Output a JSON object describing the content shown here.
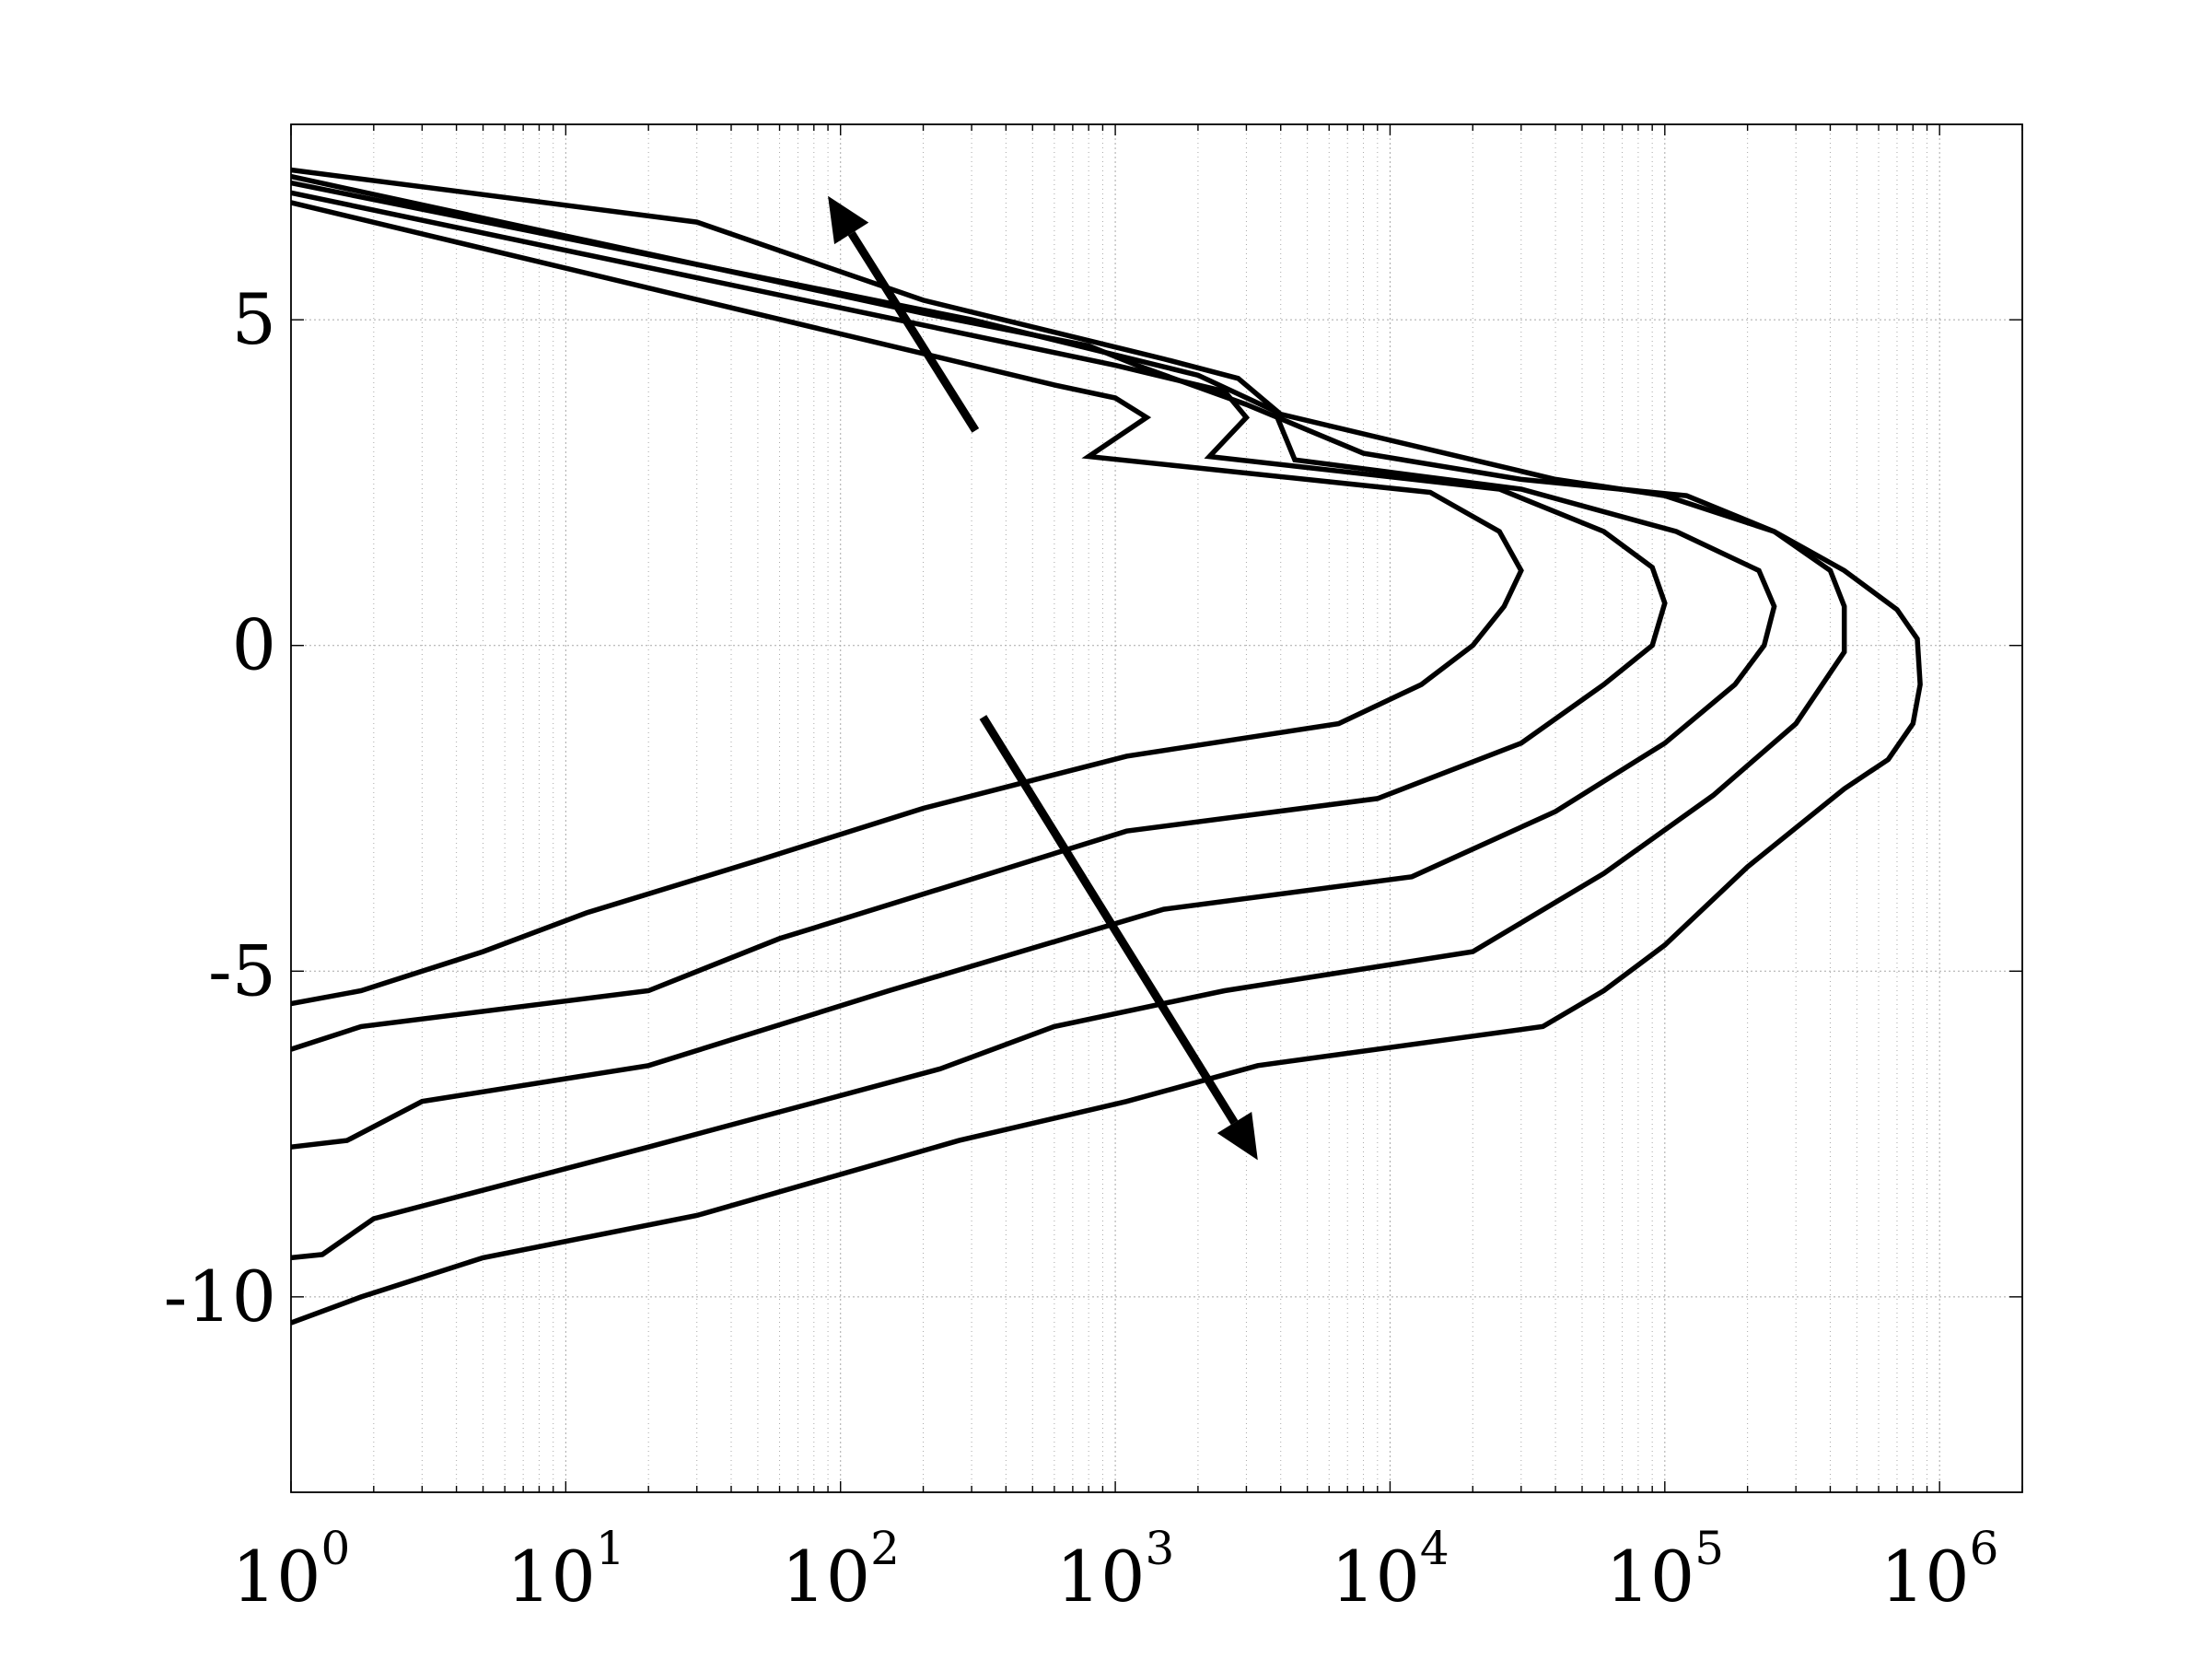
{
  "chart_data": {
    "type": "line",
    "title": "",
    "xlabel": "",
    "ylabel": "",
    "xscale": "log",
    "xlim": [
      1,
      2000000
    ],
    "ylim": [
      -13,
      8
    ],
    "grid": true,
    "legend": "none",
    "line_color": "#000000",
    "grid_color": "#a8a8a8",
    "xticks": [
      {
        "value": 1,
        "base": "10",
        "exp": "0"
      },
      {
        "value": 10,
        "base": "10",
        "exp": "1"
      },
      {
        "value": 100,
        "base": "10",
        "exp": "2"
      },
      {
        "value": 1000,
        "base": "10",
        "exp": "3"
      },
      {
        "value": 10000,
        "base": "10",
        "exp": "4"
      },
      {
        "value": 100000,
        "base": "10",
        "exp": "5"
      },
      {
        "value": 1000000,
        "base": "10",
        "exp": "6"
      }
    ],
    "yticks": [
      {
        "value": 5,
        "label": "5"
      },
      {
        "value": 0,
        "label": "0"
      },
      {
        "value": -5,
        "label": "-5"
      },
      {
        "value": -10,
        "label": "-10"
      }
    ],
    "series": [
      {
        "points": [
          [
            1,
            -5.5
          ],
          [
            1.8,
            -5.3
          ],
          [
            5,
            -4.7
          ],
          [
            12,
            -4.1
          ],
          [
            50,
            -3.3
          ],
          [
            200,
            -2.5
          ],
          [
            1100,
            -1.7
          ],
          [
            6500,
            -1.2
          ],
          [
            13000,
            -0.6
          ],
          [
            20000,
            0
          ],
          [
            26000,
            0.6
          ],
          [
            30000,
            1.15
          ],
          [
            25000,
            1.75
          ],
          [
            14000,
            2.35
          ],
          [
            800,
            2.9
          ],
          [
            1300,
            3.5
          ],
          [
            1000,
            3.8
          ],
          [
            600,
            4.0
          ],
          [
            1,
            6.8
          ]
        ]
      },
      {
        "points": [
          [
            1,
            -6.2
          ],
          [
            1.8,
            -5.85
          ],
          [
            20,
            -5.3
          ],
          [
            60,
            -4.5
          ],
          [
            350,
            -3.5
          ],
          [
            1100,
            -2.85
          ],
          [
            9000,
            -2.35
          ],
          [
            30000,
            -1.5
          ],
          [
            60000,
            -0.6
          ],
          [
            90000,
            0
          ],
          [
            100000,
            0.65
          ],
          [
            90000,
            1.2
          ],
          [
            60000,
            1.75
          ],
          [
            25000,
            2.4
          ],
          [
            2200,
            2.9
          ],
          [
            3000,
            3.5
          ],
          [
            2500,
            3.9
          ],
          [
            1000,
            4.3
          ],
          [
            1,
            6.95
          ]
        ]
      },
      {
        "points": [
          [
            1,
            -7.7
          ],
          [
            1.6,
            -7.6
          ],
          [
            3,
            -7.0
          ],
          [
            20,
            -6.45
          ],
          [
            150,
            -5.3
          ],
          [
            1500,
            -4.05
          ],
          [
            12000,
            -3.55
          ],
          [
            40000,
            -2.55
          ],
          [
            100000,
            -1.5
          ],
          [
            180000,
            -0.6
          ],
          [
            230000,
            0
          ],
          [
            250000,
            0.6
          ],
          [
            220000,
            1.15
          ],
          [
            110000,
            1.75
          ],
          [
            30000,
            2.4
          ],
          [
            4500,
            2.85
          ],
          [
            3800,
            3.6
          ],
          [
            2000,
            4.15
          ],
          [
            300,
            5.0
          ],
          [
            1,
            7.1
          ]
        ]
      },
      {
        "points": [
          [
            1,
            -9.4
          ],
          [
            1.3,
            -9.35
          ],
          [
            2,
            -8.8
          ],
          [
            20,
            -7.7
          ],
          [
            230,
            -6.5
          ],
          [
            600,
            -5.85
          ],
          [
            2500,
            -5.3
          ],
          [
            20000,
            -4.7
          ],
          [
            60000,
            -3.5
          ],
          [
            150000,
            -2.3
          ],
          [
            300000,
            -1.2
          ],
          [
            450000,
            -0.1
          ],
          [
            450000,
            0.6
          ],
          [
            400000,
            1.15
          ],
          [
            250000,
            1.75
          ],
          [
            120000,
            2.3
          ],
          [
            30000,
            2.55
          ],
          [
            8000,
            2.95
          ],
          [
            3000,
            3.7
          ],
          [
            1200,
            4.3
          ],
          [
            800,
            4.6
          ],
          [
            200,
            5.1
          ],
          [
            1,
            7.2
          ]
        ]
      },
      {
        "points": [
          [
            1,
            -10.4
          ],
          [
            1.8,
            -10.0
          ],
          [
            5,
            -9.4
          ],
          [
            30,
            -8.75
          ],
          [
            270,
            -7.6
          ],
          [
            1100,
            -7.0
          ],
          [
            3300,
            -6.45
          ],
          [
            36000,
            -5.85
          ],
          [
            60000,
            -5.3
          ],
          [
            100000,
            -4.6
          ],
          [
            200000,
            -3.4
          ],
          [
            450000,
            -2.2
          ],
          [
            650000,
            -1.75
          ],
          [
            800000,
            -1.2
          ],
          [
            850000,
            -0.6
          ],
          [
            830000,
            0.1
          ],
          [
            700000,
            0.55
          ],
          [
            450000,
            1.15
          ],
          [
            250000,
            1.75
          ],
          [
            100000,
            2.3
          ],
          [
            40000,
            2.55
          ],
          [
            4000,
            3.55
          ],
          [
            2800,
            4.1
          ],
          [
            1500,
            4.4
          ],
          [
            200,
            5.3
          ],
          [
            30,
            6.5
          ],
          [
            1,
            7.3
          ]
        ]
      }
    ],
    "annotations": [
      {
        "type": "arrow",
        "direction": "up-left",
        "from": [
          310,
          3.3
        ],
        "to": [
          90,
          6.9
        ]
      },
      {
        "type": "arrow",
        "direction": "down-right",
        "from": [
          330,
          -1.1
        ],
        "to": [
          3300,
          -7.9
        ]
      }
    ]
  }
}
